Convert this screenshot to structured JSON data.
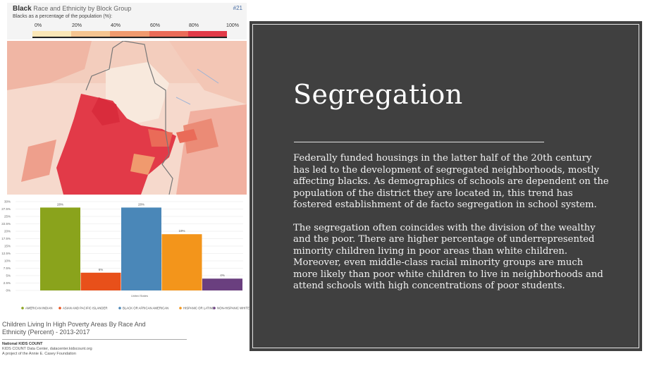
{
  "map": {
    "title_bold": "Black",
    "title_rest": "Race and Ethnicity by Block Group",
    "id_label": "#21",
    "legend_title": "Blacks as a percentage of the population (%):",
    "legend_ticks": [
      "0%",
      "20%",
      "40%",
      "60%",
      "80%",
      "100%"
    ],
    "legend_colors": [
      "#fbe7b7",
      "#f5c490",
      "#f09a6e",
      "#ea6b58",
      "#e23a48"
    ]
  },
  "chart_data": {
    "type": "bar",
    "categories": [
      "AMERICAN INDIAN",
      "ASIAN AND PACIFIC ISLANDER",
      "BLACK OR AFRICAN AMERICAN",
      "HISPANIC OR LATINO",
      "NON-HISPANIC WHITE"
    ],
    "values": [
      28,
      6,
      28,
      19,
      4
    ],
    "data_labels": [
      "28%",
      "6%",
      "28%",
      "19%",
      "4%"
    ],
    "colors": [
      "#8aa31c",
      "#e8501a",
      "#4a87b8",
      "#f3951b",
      "#6a3f7f"
    ],
    "y_ticks": [
      "30%",
      "27.5%",
      "25%",
      "22.5%",
      "20%",
      "17.5%",
      "15%",
      "12.5%",
      "10%",
      "7.5%",
      "5%",
      "2.5%",
      "0%"
    ],
    "ylim": [
      0,
      30
    ],
    "x_group_label": "United States",
    "legend_position": "bottom"
  },
  "caption": {
    "line1": "Children Living In High Poverty Areas By Race And",
    "line2": "Ethnicity (Percent) - 2013-2017"
  },
  "credit": {
    "org": "National KIDS COUNT",
    "line2": "KIDS COUNT Data Center, datacenter.kidscount.org",
    "line3": "A project of the Annie E. Casey Foundation"
  },
  "slide": {
    "heading": "Segregation",
    "paragraph1": "Federally funded housings in the latter half of the 20th century has led to the development of segregated neighborhoods, mostly affecting blacks. As demographics of schools are dependent on the population of the district they are located in, this trend has fostered establishment of de facto segregation in school system.",
    "paragraph2": "The segregation often coincides with the division of the wealthy and the poor. There are higher percentage of underrepresented minority children living in poor areas than white children. Moreover, even middle-class racial minority groups are much more likely than poor white children to live in neighborhoods and attend schools with high concentrations of poor students."
  }
}
